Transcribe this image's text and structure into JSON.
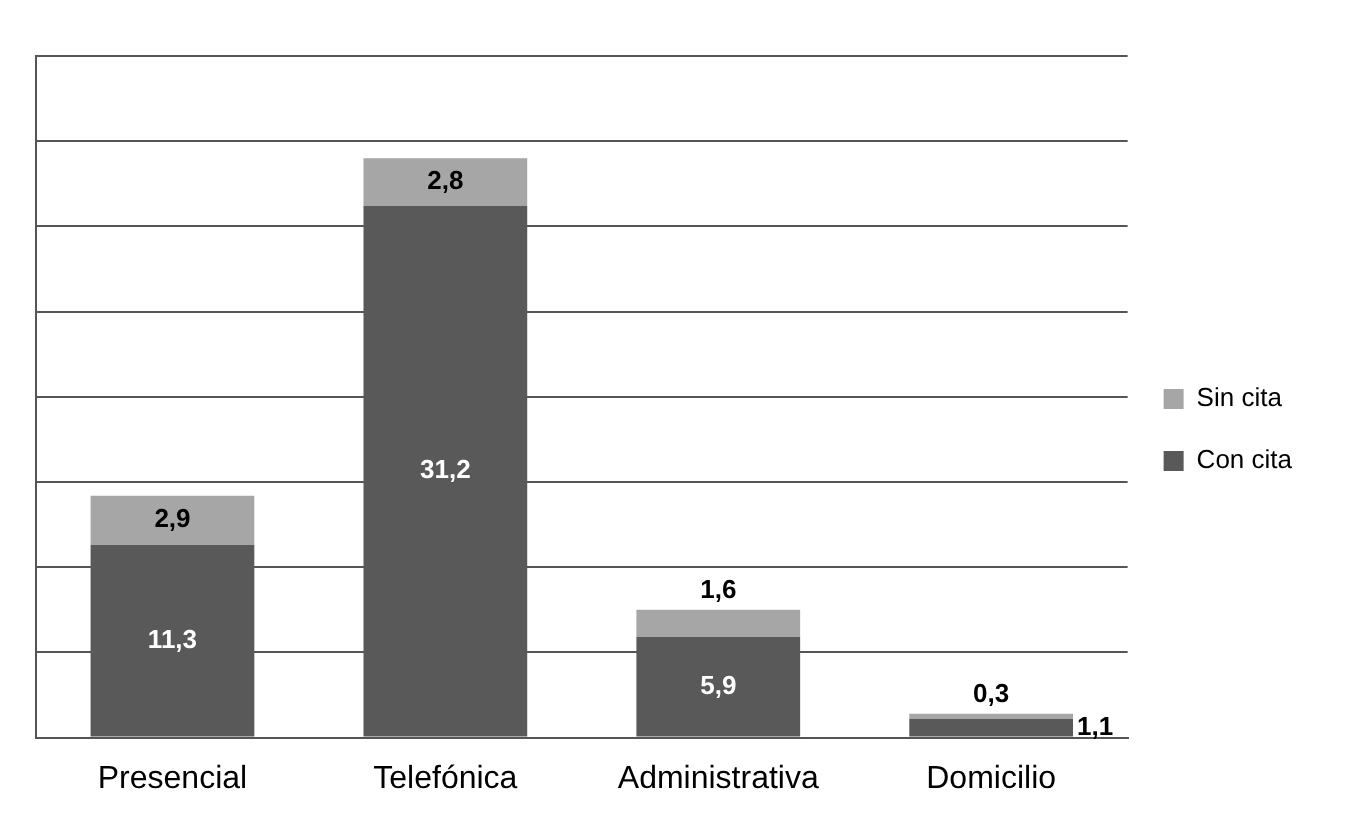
{
  "chart_data": {
    "type": "bar",
    "stacked": true,
    "categories": [
      "Presencial",
      "Telefónica",
      "Administrativa",
      "Domicilio"
    ],
    "series": [
      {
        "name": "Con cita",
        "color": "#595959",
        "values": [
          11.3,
          31.2,
          5.9,
          1.1
        ],
        "value_labels": [
          "11,3",
          "31,2",
          "5,9",
          "1,1"
        ]
      },
      {
        "name": "Sin cita",
        "color": "#a6a6a6",
        "values": [
          2.9,
          2.8,
          1.6,
          0.3
        ],
        "value_labels": [
          "2,9",
          "2,8",
          "1,6",
          "0,3"
        ]
      }
    ],
    "ylim": [
      0,
      40
    ],
    "tick_labels": "x",
    "grid": "y",
    "legend": "right"
  }
}
